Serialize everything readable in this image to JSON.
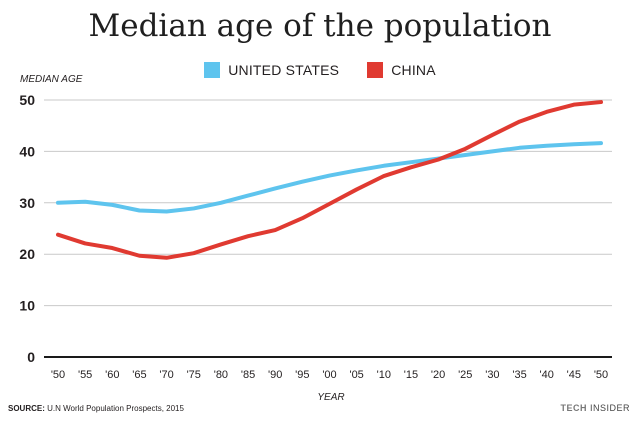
{
  "title": "Median age of the population",
  "source_label": "SOURCE:",
  "source_text": "U.N World Population Prospects, 2015",
  "brand": {
    "part1": "TECH",
    "part2": "INSIDER"
  },
  "colors": {
    "us": "#5ec4ee",
    "china": "#e03a31",
    "grid": "#c9c9c9",
    "axis": "#1a1a1a"
  },
  "chart_data": {
    "type": "line",
    "title": "Median age of the population",
    "xlabel": "YEAR",
    "ylabel": "MEDIAN AGE",
    "ylim": [
      0,
      50
    ],
    "y_ticks": [
      0,
      10,
      20,
      30,
      40,
      50
    ],
    "grid": true,
    "legend_position": "top-center",
    "x": [
      1950,
      1955,
      1960,
      1965,
      1970,
      1975,
      1980,
      1985,
      1990,
      1995,
      2000,
      2005,
      2010,
      2015,
      2020,
      2025,
      2030,
      2035,
      2040,
      2045,
      2050
    ],
    "x_tick_labels": [
      "'50",
      "'55",
      "'60",
      "'65",
      "'70",
      "'75",
      "'80",
      "'85",
      "'90",
      "'95",
      "'00",
      "'05",
      "'10",
      "'15",
      "'20",
      "'25",
      "'30",
      "'35",
      "'40",
      "'45",
      "'50"
    ],
    "series": [
      {
        "name": "UNITED STATES",
        "color": "#5ec4ee",
        "values": [
          30.0,
          30.2,
          29.6,
          28.5,
          28.3,
          28.9,
          30.0,
          31.4,
          32.8,
          34.1,
          35.3,
          36.3,
          37.2,
          37.9,
          38.6,
          39.3,
          40.0,
          40.7,
          41.1,
          41.4,
          41.6
        ]
      },
      {
        "name": "CHINA",
        "color": "#e03a31",
        "values": [
          23.8,
          22.1,
          21.2,
          19.7,
          19.3,
          20.2,
          21.9,
          23.5,
          24.7,
          27.0,
          29.8,
          32.6,
          35.2,
          36.9,
          38.4,
          40.5,
          43.2,
          45.8,
          47.7,
          49.1,
          49.6
        ]
      }
    ]
  }
}
